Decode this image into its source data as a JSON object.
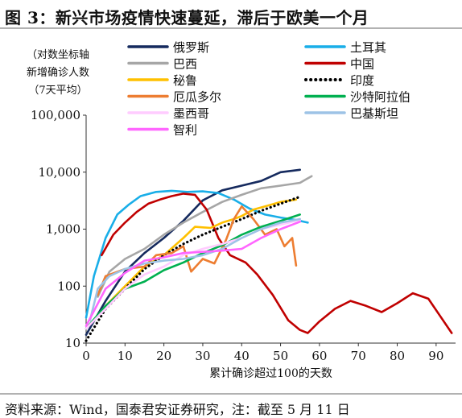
{
  "header": {
    "title": "图 3：新兴市场疫情快速蔓延，滞后于欧美一个月"
  },
  "footer": {
    "source": "资料来源：Wind，国泰君安证券研究，注：截至 5 月 11 日"
  },
  "chart_data": {
    "type": "line",
    "title": "",
    "ylabel_lines": [
      "（对数坐标轴",
      "新增确诊人数",
      "（7天平均）"
    ],
    "xlabel": "累计确诊超过100的天数",
    "x_range": [
      0,
      95
    ],
    "x_ticks": [
      0,
      10,
      20,
      30,
      40,
      50,
      60,
      70,
      80,
      90
    ],
    "y_scale": "log",
    "y_range": [
      10,
      100000
    ],
    "y_ticks": [
      {
        "value": 10,
        "label": "10"
      },
      {
        "value": 100,
        "label": "100"
      },
      {
        "value": 1000,
        "label": "1,000"
      },
      {
        "value": 10000,
        "label": "10,000"
      },
      {
        "value": 100000,
        "label": "100,000"
      }
    ],
    "grid": false,
    "legend_position": "top",
    "series": [
      {
        "name": "俄罗斯",
        "color": "#152a5e",
        "dash": "solid",
        "x": [
          0,
          5,
          10,
          15,
          20,
          25,
          30,
          35,
          40,
          45,
          50,
          55
        ],
        "y": [
          14,
          55,
          180,
          380,
          700,
          1400,
          3200,
          4800,
          5800,
          7000,
          10000,
          11000
        ]
      },
      {
        "name": "土耳其",
        "color": "#19aee8",
        "dash": "solid",
        "x": [
          0,
          2,
          5,
          8,
          11,
          14,
          18,
          22,
          26,
          30,
          34,
          38,
          42,
          46,
          50,
          54,
          57
        ],
        "y": [
          28,
          150,
          700,
          1800,
          2700,
          3800,
          4500,
          4700,
          4500,
          4600,
          4300,
          3300,
          2300,
          1800,
          1600,
          1450,
          1300
        ]
      },
      {
        "name": "巴西",
        "color": "#a6a6a6",
        "dash": "solid",
        "x": [
          3,
          6,
          10,
          15,
          20,
          25,
          30,
          35,
          40,
          45,
          50,
          55,
          58
        ],
        "y": [
          65,
          180,
          300,
          450,
          800,
          1300,
          2000,
          3000,
          4000,
          5200,
          5800,
          6500,
          8500
        ]
      },
      {
        "name": "中国",
        "color": "#c00000",
        "dash": "solid",
        "x": [
          4,
          7,
          10,
          13,
          16,
          19,
          22,
          25,
          28,
          31,
          34,
          37,
          41,
          44,
          48,
          52,
          55,
          57,
          60,
          64,
          68,
          72,
          76,
          80,
          84,
          88,
          91,
          94
        ],
        "y": [
          350,
          800,
          1300,
          2000,
          2800,
          3300,
          3800,
          4200,
          4000,
          2200,
          700,
          350,
          260,
          160,
          70,
          25,
          17,
          15,
          24,
          40,
          55,
          45,
          35,
          50,
          75,
          60,
          30,
          15
        ]
      },
      {
        "name": "秘鲁",
        "color": "#ffc000",
        "dash": "solid",
        "x": [
          5,
          10,
          15,
          20,
          25,
          28,
          32,
          35,
          38,
          40,
          43,
          46,
          50,
          54
        ],
        "y": [
          45,
          100,
          220,
          350,
          700,
          1100,
          1050,
          1300,
          1500,
          1700,
          2200,
          2500,
          3000,
          3300
        ]
      },
      {
        "name": "印度",
        "color": "#000000",
        "dash": "dots",
        "x": [
          0,
          5,
          10,
          15,
          20,
          25,
          30,
          35,
          40,
          45,
          50,
          55
        ],
        "y": [
          11,
          40,
          90,
          200,
          350,
          550,
          800,
          1100,
          1500,
          2100,
          2800,
          3700
        ]
      },
      {
        "name": "厄瓜多尔",
        "color": "#ed7d31",
        "dash": "solid",
        "x": [
          3,
          5,
          10,
          15,
          18,
          22,
          25,
          27,
          30,
          33,
          36,
          38,
          40,
          43,
          46,
          49,
          51,
          53,
          54
        ],
        "y": [
          70,
          150,
          200,
          220,
          350,
          380,
          500,
          180,
          300,
          250,
          650,
          1500,
          2500,
          1500,
          800,
          1000,
          500,
          700,
          230
        ]
      },
      {
        "name": "沙特阿拉伯",
        "color": "#00b050",
        "dash": "solid",
        "x": [
          0,
          5,
          10,
          15,
          20,
          25,
          30,
          35,
          40,
          45,
          50,
          55
        ],
        "y": [
          18,
          45,
          90,
          120,
          190,
          260,
          380,
          520,
          800,
          1100,
          1400,
          1800
        ]
      },
      {
        "name": "墨西哥",
        "color": "#ffccff",
        "dash": "solid",
        "x": [
          0,
          5,
          10,
          15,
          20,
          25,
          30,
          35,
          40,
          45,
          50,
          55
        ],
        "y": [
          18,
          40,
          90,
          160,
          220,
          350,
          450,
          550,
          700,
          1000,
          1200,
          1450
        ]
      },
      {
        "name": "巴基斯坦",
        "color": "#9dc3e6",
        "dash": "solid",
        "x": [
          1,
          3,
          6,
          10,
          15,
          20,
          25,
          30,
          35,
          40,
          45,
          50,
          55
        ],
        "y": [
          25,
          90,
          150,
          200,
          250,
          280,
          300,
          350,
          450,
          700,
          1000,
          1300,
          1500
        ]
      },
      {
        "name": "智利",
        "color": "#ff66ff",
        "dash": "solid",
        "x": [
          0,
          5,
          10,
          15,
          20,
          25,
          30,
          35,
          40,
          45,
          50,
          55
        ],
        "y": [
          20,
          90,
          170,
          280,
          320,
          380,
          400,
          420,
          450,
          700,
          1000,
          1350
        ]
      }
    ]
  }
}
